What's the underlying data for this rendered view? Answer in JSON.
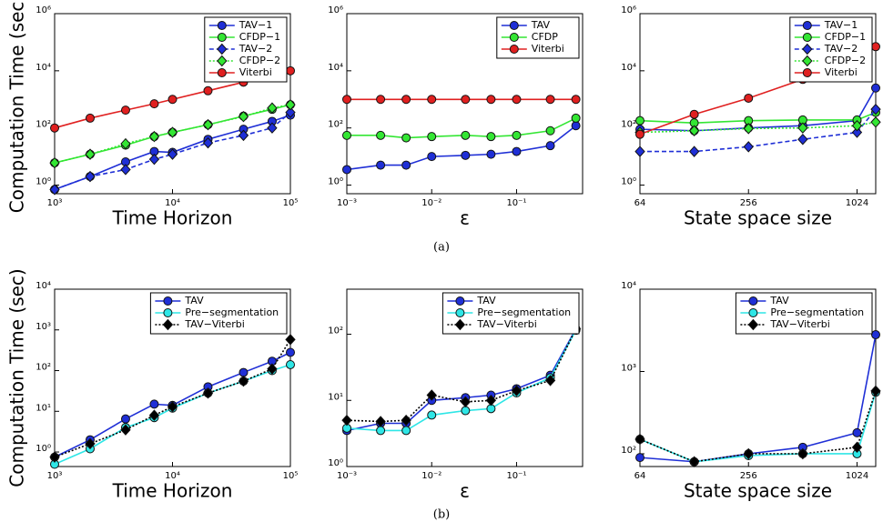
{
  "captions": [
    "(a)",
    "(b)"
  ],
  "chart_data": [
    {
      "type": "line",
      "ylabel": "Computation Time (sec)",
      "xlabel": "Time Horizon",
      "xscale": "log",
      "yscale": "log",
      "legend": "upper right",
      "x": [
        1000,
        2000,
        4000,
        7000,
        10000,
        20000,
        40000,
        70000,
        100000
      ],
      "xlim": [
        1000,
        100000
      ],
      "xticks": [
        {
          "value": 1000,
          "label": "10³"
        },
        {
          "value": 10000,
          "label": "10⁴"
        },
        {
          "value": 100000,
          "label": "10⁵"
        }
      ],
      "ylim": [
        0.5,
        1000000
      ],
      "yticks": [
        {
          "value": 1,
          "label": "10⁰"
        },
        {
          "value": 100,
          "label": "10²"
        },
        {
          "value": 10000,
          "label": "10⁴"
        },
        {
          "value": 1000000,
          "label": "10⁶"
        }
      ],
      "series": [
        {
          "name": "TAV−1",
          "color": "#1f2fd6",
          "dash": "solid",
          "marker": "circle",
          "values": [
            0.7,
            2,
            6.5,
            15,
            14,
            40,
            90,
            170,
            280
          ]
        },
        {
          "name": "CFDP−1",
          "color": "#33e633",
          "dash": "solid",
          "marker": "circle",
          "values": [
            6,
            12,
            25,
            50,
            70,
            130,
            260,
            450,
            650
          ]
        },
        {
          "name": "TAV−2",
          "color": "#1f2fd6",
          "dash": "dashed",
          "marker": "diamond",
          "values": [
            0.7,
            2,
            3.5,
            8,
            12,
            30,
            55,
            100,
            350
          ]
        },
        {
          "name": "CFDP−2",
          "color": "#33e633",
          "dash": "dotted",
          "marker": "diamond",
          "values": [
            6,
            12,
            28,
            50,
            70,
            130,
            250,
            500,
            650
          ]
        },
        {
          "name": "Viterbi",
          "color": "#e02020",
          "dash": "solid",
          "marker": "circle",
          "values": [
            100,
            220,
            420,
            700,
            1000,
            2000,
            4000,
            7000,
            10000
          ]
        }
      ]
    },
    {
      "type": "line",
      "xlabel": "ε",
      "xscale": "log",
      "yscale": "log",
      "legend": "upper right",
      "x": [
        0.001,
        0.0025,
        0.005,
        0.01,
        0.025,
        0.05,
        0.1,
        0.25,
        0.5
      ],
      "xlim": [
        0.001,
        0.6
      ],
      "xticks": [
        {
          "value": 0.001,
          "label": "10⁻³"
        },
        {
          "value": 0.01,
          "label": "10⁻²"
        },
        {
          "value": 0.1,
          "label": "10⁻¹"
        }
      ],
      "ylim": [
        0.5,
        1000000
      ],
      "yticks": [
        {
          "value": 1,
          "label": "10⁰"
        },
        {
          "value": 100,
          "label": "10²"
        },
        {
          "value": 10000,
          "label": "10⁴"
        },
        {
          "value": 1000000,
          "label": "10⁶"
        }
      ],
      "series": [
        {
          "name": "TAV",
          "color": "#1f2fd6",
          "dash": "solid",
          "marker": "circle",
          "values": [
            3.5,
            5,
            5,
            10,
            11,
            12,
            15,
            24,
            120
          ]
        },
        {
          "name": "CFDP",
          "color": "#33e633",
          "dash": "solid",
          "marker": "circle",
          "values": [
            55,
            55,
            45,
            50,
            55,
            50,
            55,
            80,
            220
          ]
        },
        {
          "name": "Viterbi",
          "color": "#e02020",
          "dash": "solid",
          "marker": "circle",
          "values": [
            1000,
            1000,
            1000,
            1000,
            1000,
            1000,
            1000,
            1000,
            1000
          ]
        }
      ]
    },
    {
      "type": "line",
      "xlabel": "State space size",
      "xscale": "log",
      "yscale": "log",
      "legend": "upper right",
      "x": [
        64,
        128,
        256,
        512,
        1024,
        1300
      ],
      "xlim": [
        64,
        1300
      ],
      "xticks": [
        64,
        256,
        1024
      ],
      "ylim": [
        0.5,
        1000000
      ],
      "yticks": [
        {
          "value": 1,
          "label": "10⁰"
        },
        {
          "value": 100,
          "label": "10²"
        },
        {
          "value": 10000,
          "label": "10⁴"
        },
        {
          "value": 1000000,
          "label": "10⁶"
        }
      ],
      "series": [
        {
          "name": "TAV−1",
          "color": "#1f2fd6",
          "dash": "solid",
          "marker": "circle",
          "values": [
            90,
            80,
            100,
            120,
            180,
            2500
          ]
        },
        {
          "name": "CFDP−1",
          "color": "#33e633",
          "dash": "solid",
          "marker": "circle",
          "values": [
            180,
            150,
            180,
            190,
            190,
            350
          ]
        },
        {
          "name": "TAV−2",
          "color": "#1f2fd6",
          "dash": "dashed",
          "marker": "diamond",
          "values": [
            15,
            15,
            22,
            40,
            70,
            450
          ]
        },
        {
          "name": "CFDP−2",
          "color": "#33e633",
          "dash": "dotted",
          "marker": "diamond",
          "values": [
            70,
            80,
            95,
            100,
            120,
            160
          ]
        },
        {
          "name": "Viterbi",
          "color": "#e02020",
          "dash": "solid",
          "marker": "circle",
          "values": [
            60,
            300,
            1100,
            5000,
            20000,
            70000
          ]
        }
      ]
    },
    {
      "type": "line",
      "ylabel": "Computation Time (sec)",
      "xlabel": "Time Horizon",
      "xscale": "log",
      "yscale": "log",
      "legend": "upper right",
      "x": [
        1000,
        2000,
        4000,
        7000,
        10000,
        20000,
        40000,
        70000,
        100000
      ],
      "xlim": [
        1000,
        100000
      ],
      "xticks": [
        {
          "value": 1000,
          "label": "10³"
        },
        {
          "value": 10000,
          "label": "10⁴"
        },
        {
          "value": 100000,
          "label": "10⁵"
        }
      ],
      "ylim": [
        0.44,
        10000
      ],
      "yticks": [
        {
          "value": 1,
          "label": "10⁰"
        },
        {
          "value": 10,
          "label": "10¹"
        },
        {
          "value": 100,
          "label": "10²"
        },
        {
          "value": 1000,
          "label": "10³"
        },
        {
          "value": 10000,
          "label": "10⁴"
        }
      ],
      "series": [
        {
          "name": "TAV",
          "color": "#1f2fd6",
          "dash": "solid",
          "marker": "circle",
          "values": [
            0.75,
            2,
            6.5,
            15,
            14,
            40,
            90,
            170,
            280
          ]
        },
        {
          "name": "Pre−segmentation",
          "color": "#2ee6e6",
          "dash": "solid",
          "marker": "circle",
          "values": [
            0.5,
            1.2,
            4,
            7,
            12,
            28,
            55,
            100,
            140
          ]
        },
        {
          "name": "TAV−Viterbi",
          "color": "#000000",
          "dash": "dotted",
          "marker": "diamond",
          "values": [
            0.75,
            1.6,
            3.5,
            8,
            13,
            28,
            55,
            110,
            580
          ]
        }
      ]
    },
    {
      "type": "line",
      "xlabel": "ε",
      "xscale": "log",
      "yscale": "log",
      "legend": "upper right",
      "x": [
        0.001,
        0.0025,
        0.005,
        0.01,
        0.025,
        0.05,
        0.1,
        0.25,
        0.5
      ],
      "xlim": [
        0.001,
        0.6
      ],
      "xticks": [
        {
          "value": 0.001,
          "label": "10⁻³"
        },
        {
          "value": 0.01,
          "label": "10⁻²"
        },
        {
          "value": 0.1,
          "label": "10⁻¹"
        }
      ],
      "ylim": [
        1,
        480
      ],
      "yticks": [
        {
          "value": 1,
          "label": "10⁰"
        },
        {
          "value": 10,
          "label": "10¹"
        },
        {
          "value": 100,
          "label": "10²"
        }
      ],
      "series": [
        {
          "name": "TAV",
          "color": "#1f2fd6",
          "dash": "solid",
          "marker": "circle",
          "values": [
            3.5,
            4.5,
            4.5,
            10,
            11,
            12,
            15,
            24,
            120
          ]
        },
        {
          "name": "Pre−segmentation",
          "color": "#2ee6e6",
          "dash": "solid",
          "marker": "circle",
          "values": [
            3.8,
            3.5,
            3.5,
            6,
            7,
            7.5,
            13,
            22,
            115
          ]
        },
        {
          "name": "TAV−Viterbi",
          "color": "#000000",
          "dash": "dotted",
          "marker": "diamond",
          "values": [
            5,
            4.8,
            5,
            12,
            9.5,
            10,
            14,
            20,
            120
          ]
        }
      ]
    },
    {
      "type": "line",
      "xlabel": "State space size",
      "xscale": "log",
      "yscale": "log",
      "legend": "upper right",
      "x": [
        64,
        128,
        256,
        512,
        1024,
        1300
      ],
      "xlim": [
        64,
        1300
      ],
      "xticks": [
        64,
        256,
        1024
      ],
      "ylim": [
        70,
        10000
      ],
      "yticks": [
        {
          "value": 100,
          "label": "10²"
        },
        {
          "value": 1000,
          "label": "10³"
        },
        {
          "value": 10000,
          "label": "10⁴"
        }
      ],
      "series": [
        {
          "name": "TAV",
          "color": "#1f2fd6",
          "dash": "solid",
          "marker": "circle",
          "values": [
            90,
            80,
            100,
            120,
            180,
            2800
          ]
        },
        {
          "name": "Pre−segmentation",
          "color": "#2ee6e6",
          "dash": "solid",
          "marker": "circle",
          "values": [
            150,
            80,
            95,
            100,
            100,
            560
          ]
        },
        {
          "name": "TAV−Viterbi",
          "color": "#000000",
          "dash": "dotted",
          "marker": "diamond",
          "values": [
            150,
            80,
            100,
            100,
            120,
            580
          ]
        }
      ]
    }
  ]
}
